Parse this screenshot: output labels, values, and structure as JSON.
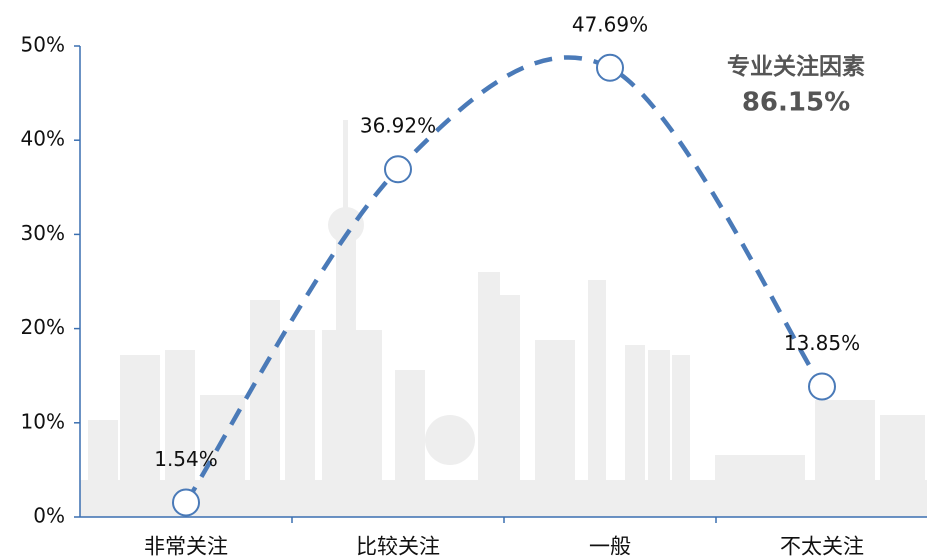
{
  "chart_data": {
    "type": "line",
    "categories": [
      "非常关注",
      "比较关注",
      "一般",
      "不太关注"
    ],
    "series": [
      {
        "color": "#4a7ab8",
        "values": [
          1.54,
          36.92,
          47.69,
          13.85
        ],
        "value_labels": [
          "1.54%",
          "36.92%",
          "47.69%",
          "13.85%"
        ]
      }
    ],
    "ylim": [
      0,
      50
    ],
    "yticks": [
      {
        "value": 0,
        "label": "0%"
      },
      {
        "value": 10,
        "label": "10%"
      },
      {
        "value": 20,
        "label": "20%"
      },
      {
        "value": 30,
        "label": "30%"
      },
      {
        "value": 40,
        "label": "40%"
      },
      {
        "value": 50,
        "label": "50%"
      }
    ],
    "annotations": [
      "专业关注因素",
      "86.15%"
    ]
  }
}
